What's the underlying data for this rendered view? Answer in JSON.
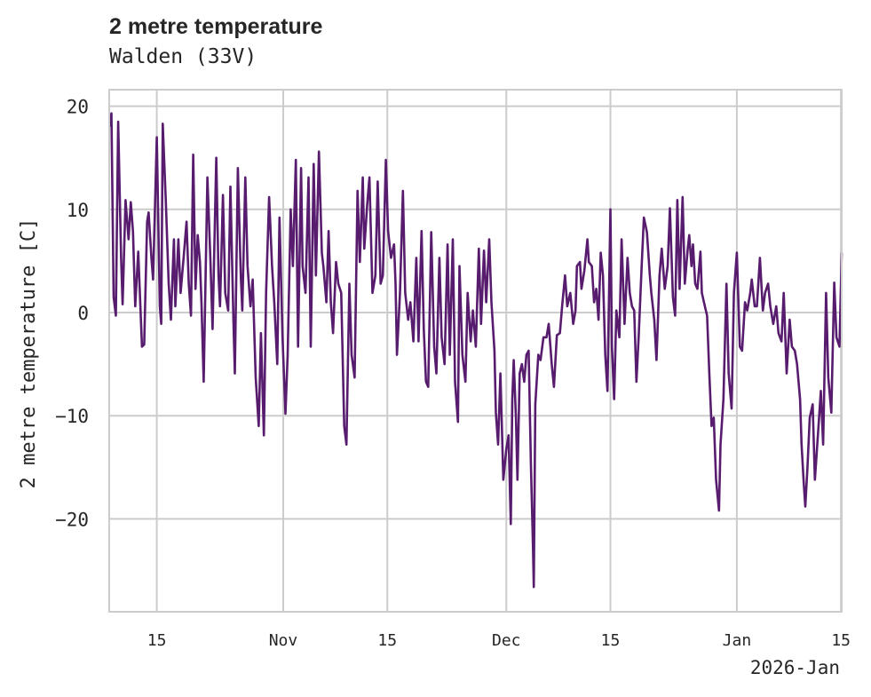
{
  "chart_data": {
    "type": "line",
    "title": "2 metre temperature",
    "subtitle": "Walden (33V)",
    "xlabel": "",
    "ylabel": "2 metre temperature [C]",
    "x_units": "days since 2025-10-01",
    "x_offset_label": "2026-Jan",
    "xlim": [
      7.6,
      106.1
    ],
    "ylim": [
      -29,
      21.6
    ],
    "grid": true,
    "line_color": "#581c6e",
    "yticks": [
      {
        "value": 20,
        "label": "20"
      },
      {
        "value": 10,
        "label": "10"
      },
      {
        "value": 0,
        "label": "0"
      },
      {
        "value": -10,
        "label": "−10"
      },
      {
        "value": -20,
        "label": "−20"
      }
    ],
    "xticks": [
      {
        "value": 14,
        "label": "15"
      },
      {
        "value": 31,
        "label": "Nov"
      },
      {
        "value": 45,
        "label": "15"
      },
      {
        "value": 61,
        "label": "Dec"
      },
      {
        "value": 75,
        "label": "15"
      },
      {
        "value": 92,
        "label": "Jan"
      },
      {
        "value": 106,
        "label": "15"
      }
    ],
    "series": [
      {
        "name": "2 metre temperature",
        "points": [
          [
            7.7,
            18.0
          ],
          [
            7.9,
            19.3
          ],
          [
            8.2,
            1.5
          ],
          [
            8.5,
            -0.3
          ],
          [
            8.8,
            18.5
          ],
          [
            9.2,
            5.3
          ],
          [
            9.4,
            0.8
          ],
          [
            9.8,
            10.9
          ],
          [
            10.2,
            7.1
          ],
          [
            10.5,
            10.7
          ],
          [
            10.8,
            7.8
          ],
          [
            11.1,
            0.6
          ],
          [
            11.5,
            5.9
          ],
          [
            12.0,
            -3.3
          ],
          [
            12.3,
            -3.1
          ],
          [
            12.7,
            8.8
          ],
          [
            12.9,
            9.7
          ],
          [
            13.3,
            5.1
          ],
          [
            13.5,
            3.2
          ],
          [
            14.0,
            17.0
          ],
          [
            14.4,
            0.6
          ],
          [
            14.6,
            -1.1
          ],
          [
            14.8,
            18.3
          ],
          [
            15.2,
            10.9
          ],
          [
            15.6,
            2.8
          ],
          [
            15.9,
            -0.7
          ],
          [
            16.3,
            7.1
          ],
          [
            16.5,
            0.6
          ],
          [
            16.9,
            7.1
          ],
          [
            17.2,
            1.9
          ],
          [
            17.6,
            5.3
          ],
          [
            18.0,
            8.8
          ],
          [
            18.3,
            2.8
          ],
          [
            18.6,
            -0.3
          ],
          [
            18.9,
            15.3
          ],
          [
            19.2,
            2.3
          ],
          [
            19.5,
            7.5
          ],
          [
            19.8,
            4.9
          ],
          [
            20.0,
            1.0
          ],
          [
            20.3,
            -6.7
          ],
          [
            20.8,
            13.1
          ],
          [
            21.2,
            5.3
          ],
          [
            21.5,
            -1.6
          ],
          [
            22.0,
            15.0
          ],
          [
            22.3,
            3.6
          ],
          [
            22.5,
            0.6
          ],
          [
            22.9,
            11.4
          ],
          [
            23.2,
            1.9
          ],
          [
            23.6,
            0.2
          ],
          [
            23.9,
            12.2
          ],
          [
            24.3,
            -0.7
          ],
          [
            24.5,
            -5.9
          ],
          [
            24.9,
            14.0
          ],
          [
            25.3,
            3.6
          ],
          [
            25.5,
            0.2
          ],
          [
            25.9,
            13.1
          ],
          [
            26.2,
            4.5
          ],
          [
            26.6,
            0.6
          ],
          [
            26.9,
            3.2
          ],
          [
            27.3,
            -6.3
          ],
          [
            27.7,
            -11.0
          ],
          [
            28.0,
            -2.0
          ],
          [
            28.4,
            -11.9
          ],
          [
            28.7,
            1.9
          ],
          [
            29.1,
            11.2
          ],
          [
            29.5,
            4.5
          ],
          [
            29.8,
            1.0
          ],
          [
            30.2,
            -5.0
          ],
          [
            30.5,
            9.2
          ],
          [
            30.9,
            -2.4
          ],
          [
            31.3,
            -9.8
          ],
          [
            31.6,
            -4.1
          ],
          [
            32.0,
            10.0
          ],
          [
            32.3,
            4.5
          ],
          [
            32.7,
            14.8
          ],
          [
            33.0,
            -3.3
          ],
          [
            33.4,
            14.0
          ],
          [
            33.6,
            4.5
          ],
          [
            34.0,
            1.9
          ],
          [
            34.4,
            13.1
          ],
          [
            34.7,
            -3.3
          ],
          [
            35.1,
            14.4
          ],
          [
            35.4,
            3.6
          ],
          [
            35.8,
            15.6
          ],
          [
            36.2,
            5.8
          ],
          [
            36.4,
            4.5
          ],
          [
            36.8,
            1.0
          ],
          [
            37.1,
            7.9
          ],
          [
            37.4,
            1.0
          ],
          [
            37.7,
            -2.0
          ],
          [
            38.1,
            4.9
          ],
          [
            38.4,
            2.8
          ],
          [
            38.8,
            1.9
          ],
          [
            39.2,
            -11.0
          ],
          [
            39.5,
            -12.8
          ],
          [
            39.9,
            2.8
          ],
          [
            40.2,
            -4.1
          ],
          [
            40.6,
            -6.3
          ],
          [
            41.0,
            11.8
          ],
          [
            41.3,
            4.9
          ],
          [
            41.7,
            13.1
          ],
          [
            41.9,
            6.2
          ],
          [
            42.3,
            10.5
          ],
          [
            42.6,
            13.1
          ],
          [
            43.0,
            1.9
          ],
          [
            43.4,
            3.6
          ],
          [
            43.7,
            12.7
          ],
          [
            44.1,
            2.8
          ],
          [
            44.4,
            3.6
          ],
          [
            44.8,
            14.8
          ],
          [
            45.1,
            7.9
          ],
          [
            45.5,
            5.3
          ],
          [
            45.9,
            6.6
          ],
          [
            46.1,
            2.8
          ],
          [
            46.3,
            -4.1
          ],
          [
            46.7,
            1.9
          ],
          [
            47.1,
            11.8
          ],
          [
            47.4,
            1.9
          ],
          [
            47.8,
            -0.7
          ],
          [
            48.1,
            1.0
          ],
          [
            48.5,
            -2.8
          ],
          [
            48.9,
            5.3
          ],
          [
            49.2,
            -2.8
          ],
          [
            49.6,
            7.9
          ],
          [
            49.9,
            -1.6
          ],
          [
            50.2,
            -6.7
          ],
          [
            50.5,
            -7.2
          ],
          [
            50.9,
            7.8
          ],
          [
            51.3,
            -3.3
          ],
          [
            51.6,
            -5.9
          ],
          [
            52.0,
            5.3
          ],
          [
            52.3,
            -2.4
          ],
          [
            52.7,
            -5.0
          ],
          [
            53.1,
            6.6
          ],
          [
            53.4,
            -4.1
          ],
          [
            53.8,
            7.1
          ],
          [
            54.1,
            -6.7
          ],
          [
            54.5,
            -10.6
          ],
          [
            54.7,
            4.5
          ],
          [
            55.1,
            -4.1
          ],
          [
            55.5,
            -6.7
          ],
          [
            55.8,
            1.9
          ],
          [
            56.2,
            -2.8
          ],
          [
            56.5,
            0.2
          ],
          [
            56.9,
            -3.3
          ],
          [
            57.3,
            6.2
          ],
          [
            57.6,
            -1.1
          ],
          [
            58.0,
            6.0
          ],
          [
            58.3,
            1.0
          ],
          [
            58.7,
            7.1
          ],
          [
            59.0,
            1.0
          ],
          [
            59.4,
            -3.7
          ],
          [
            59.6,
            -9.7
          ],
          [
            59.9,
            -12.8
          ],
          [
            60.2,
            -5.9
          ],
          [
            60.6,
            -16.2
          ],
          [
            61.0,
            -13.2
          ],
          [
            61.3,
            -11.9
          ],
          [
            61.6,
            -20.5
          ],
          [
            61.8,
            -8.4
          ],
          [
            62.0,
            -4.6
          ],
          [
            62.3,
            -10.2
          ],
          [
            62.5,
            -16.2
          ],
          [
            62.8,
            -5.9
          ],
          [
            63.1,
            -5.0
          ],
          [
            63.4,
            -6.7
          ],
          [
            63.7,
            -4.1
          ],
          [
            64.0,
            -3.7
          ],
          [
            64.3,
            -14.5
          ],
          [
            64.6,
            -23.1
          ],
          [
            64.7,
            -26.6
          ],
          [
            64.9,
            -8.9
          ],
          [
            65.3,
            -4.1
          ],
          [
            65.6,
            -4.6
          ],
          [
            66.0,
            -2.4
          ],
          [
            66.4,
            -2.4
          ],
          [
            66.7,
            -1.1
          ],
          [
            67.1,
            -5.0
          ],
          [
            67.4,
            -7.2
          ],
          [
            67.8,
            -2.2
          ],
          [
            68.2,
            -2.0
          ],
          [
            68.5,
            0.6
          ],
          [
            68.9,
            3.6
          ],
          [
            69.2,
            0.6
          ],
          [
            69.6,
            1.9
          ],
          [
            70.0,
            -1.1
          ],
          [
            70.3,
            0.2
          ],
          [
            70.5,
            4.5
          ],
          [
            70.9,
            4.9
          ],
          [
            71.1,
            2.3
          ],
          [
            71.5,
            4.1
          ],
          [
            71.9,
            7.1
          ],
          [
            72.1,
            4.9
          ],
          [
            72.5,
            4.5
          ],
          [
            72.8,
            1.0
          ],
          [
            73.1,
            2.3
          ],
          [
            73.4,
            -0.7
          ],
          [
            73.7,
            5.8
          ],
          [
            74.0,
            3.6
          ],
          [
            74.3,
            -4.1
          ],
          [
            74.6,
            -7.6
          ],
          [
            75.0,
            10.0
          ],
          [
            75.2,
            -3.3
          ],
          [
            75.5,
            -8.4
          ],
          [
            75.8,
            0.2
          ],
          [
            76.2,
            -2.4
          ],
          [
            76.5,
            7.1
          ],
          [
            76.9,
            -1.1
          ],
          [
            77.3,
            5.3
          ],
          [
            77.6,
            1.9
          ],
          [
            77.9,
            0.6
          ],
          [
            78.2,
            0.2
          ],
          [
            78.5,
            -6.7
          ],
          [
            78.8,
            -2.4
          ],
          [
            79.2,
            4.5
          ],
          [
            79.5,
            9.2
          ],
          [
            79.9,
            7.8
          ],
          [
            80.3,
            3.6
          ],
          [
            80.5,
            1.9
          ],
          [
            80.9,
            -0.7
          ],
          [
            81.2,
            -4.6
          ],
          [
            81.6,
            3.6
          ],
          [
            81.9,
            6.2
          ],
          [
            82.3,
            2.3
          ],
          [
            82.7,
            4.5
          ],
          [
            83.0,
            10.1
          ],
          [
            83.4,
            1.5
          ],
          [
            83.7,
            -0.3
          ],
          [
            84.0,
            10.9
          ],
          [
            84.3,
            2.3
          ],
          [
            84.7,
            11.2
          ],
          [
            85.0,
            2.8
          ],
          [
            85.4,
            6.2
          ],
          [
            85.6,
            7.5
          ],
          [
            85.9,
            4.5
          ],
          [
            86.1,
            6.6
          ],
          [
            86.4,
            2.8
          ],
          [
            86.7,
            2.3
          ],
          [
            87.1,
            5.9
          ],
          [
            87.3,
            1.9
          ],
          [
            87.7,
            0.6
          ],
          [
            88.0,
            -0.3
          ],
          [
            88.3,
            -5.9
          ],
          [
            88.6,
            -11.0
          ],
          [
            88.9,
            -10.2
          ],
          [
            89.2,
            -16.2
          ],
          [
            89.6,
            -19.2
          ],
          [
            89.8,
            -12.8
          ],
          [
            90.2,
            -8.4
          ],
          [
            90.6,
            2.8
          ],
          [
            90.9,
            -5.9
          ],
          [
            91.3,
            -9.3
          ],
          [
            91.6,
            1.9
          ],
          [
            92.0,
            5.8
          ],
          [
            92.4,
            -3.3
          ],
          [
            92.7,
            -3.7
          ],
          [
            93.1,
            1.0
          ],
          [
            93.4,
            0.2
          ],
          [
            93.8,
            1.9
          ],
          [
            94.0,
            3.2
          ],
          [
            94.4,
            0.6
          ],
          [
            94.7,
            0.6
          ],
          [
            95.1,
            5.3
          ],
          [
            95.5,
            0.2
          ],
          [
            95.8,
            1.9
          ],
          [
            96.2,
            2.8
          ],
          [
            96.5,
            0.6
          ],
          [
            96.9,
            -1.1
          ],
          [
            97.3,
            0.6
          ],
          [
            97.6,
            -2.0
          ],
          [
            98.0,
            -2.8
          ],
          [
            98.3,
            1.9
          ],
          [
            98.7,
            -5.9
          ],
          [
            99.1,
            -0.7
          ],
          [
            99.4,
            -3.3
          ],
          [
            99.8,
            -3.7
          ],
          [
            100.1,
            -5.0
          ],
          [
            100.5,
            -8.4
          ],
          [
            100.7,
            -12.8
          ],
          [
            101.0,
            -16.6
          ],
          [
            101.2,
            -18.8
          ],
          [
            101.5,
            -14.9
          ],
          [
            101.8,
            -10.2
          ],
          [
            102.2,
            -8.9
          ],
          [
            102.5,
            -16.2
          ],
          [
            102.9,
            -11.9
          ],
          [
            103.3,
            -7.6
          ],
          [
            103.6,
            -12.8
          ],
          [
            104.0,
            1.9
          ],
          [
            104.3,
            -6.3
          ],
          [
            104.7,
            -9.7
          ],
          [
            105.1,
            2.9
          ],
          [
            105.4,
            -2.4
          ],
          [
            105.8,
            -3.3
          ],
          [
            106.1,
            5.8
          ]
        ]
      }
    ]
  }
}
